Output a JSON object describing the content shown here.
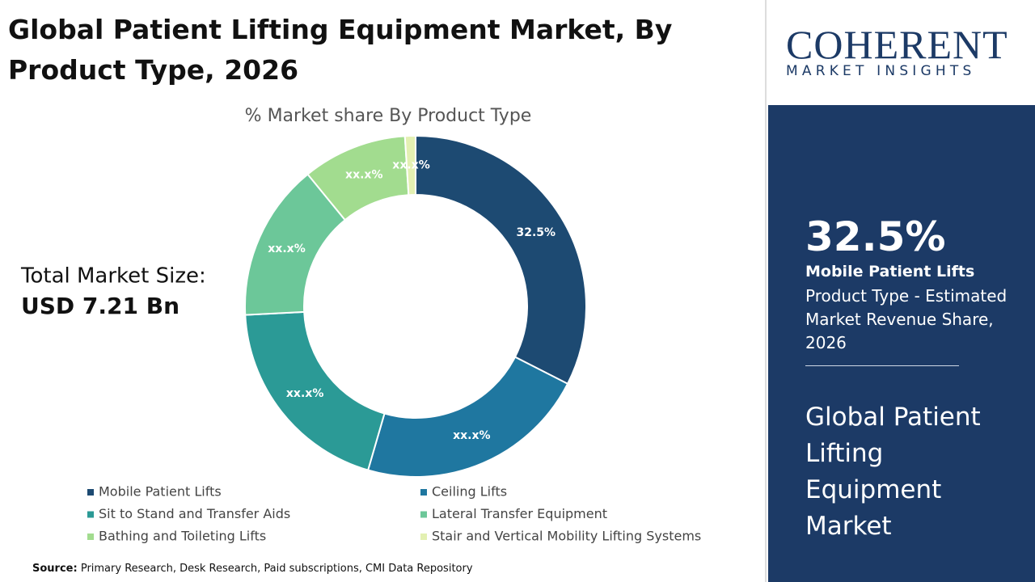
{
  "chart_data": {
    "type": "donut",
    "title": "Global Patient Lifting Equipment Market, By Product Type, 2026",
    "subtitle": "% Market share By Product Type",
    "categories": [
      "Mobile Patient Lifts",
      "Ceiling Lifts",
      "Sit to Stand and Transfer Aids",
      "Lateral Transfer Equipment",
      "Bathing and Toileting Lifts",
      "Stair and Vertical Mobility Lifting Systems"
    ],
    "values": [
      32.5,
      22.0,
      19.7,
      14.9,
      9.9,
      1.0
    ],
    "value_labels": [
      "32.5%",
      "xx.x%",
      "xx.x%",
      "xx.x%",
      "xx.x%",
      "xx.x%"
    ],
    "colors": [
      "#1d4a72",
      "#1f77a0",
      "#2b9a96",
      "#6cc799",
      "#a2dc8f",
      "#e3f0b2"
    ]
  },
  "total_market": {
    "label": "Total Market Size:",
    "value": "USD 7.21 Bn"
  },
  "source": {
    "label": "Source:",
    "text": "Primary Research, Desk Research, Paid subscriptions, CMI Data Repository"
  },
  "logo": {
    "name": "COHERENT",
    "tagline": "MARKET INSIGHTS"
  },
  "side_panel": {
    "highlight": "32.5%",
    "segment": "Mobile Patient Lifts",
    "description": "Product Type - Estimated Market Revenue Share, 2026",
    "market": "Global Patient Lifting Equipment Market"
  }
}
